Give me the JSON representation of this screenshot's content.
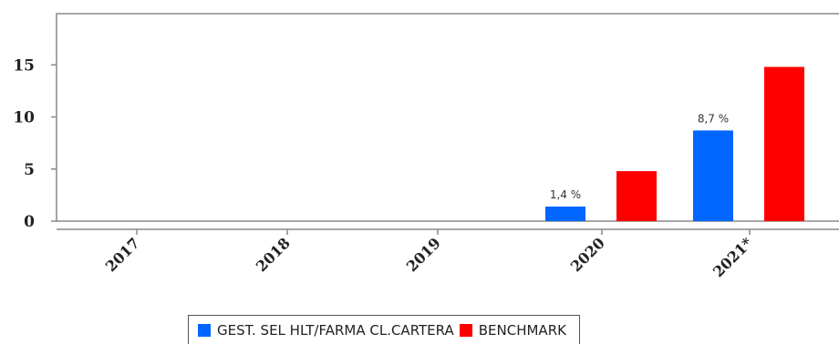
{
  "chart_data": {
    "type": "bar",
    "categories": [
      "2017",
      "2018",
      "2019",
      "2020",
      "2021*"
    ],
    "series": [
      {
        "name": "GEST. SEL HLT/FARMA CL.CARTERA",
        "color": "#0066ff",
        "values": [
          null,
          null,
          null,
          1.4,
          8.7
        ],
        "labels": [
          "",
          "",
          "",
          "1,4 %",
          "8,7 %"
        ]
      },
      {
        "name": "BENCHMARK",
        "color": "#ff0000",
        "values": [
          null,
          null,
          null,
          4.8,
          14.8
        ],
        "labels": [
          "",
          "",
          "",
          "",
          ""
        ]
      }
    ],
    "y_ticks": [
      0,
      5,
      10,
      15
    ],
    "ylim": [
      0,
      19.5
    ],
    "grid": false,
    "legend_position": "bottom"
  }
}
